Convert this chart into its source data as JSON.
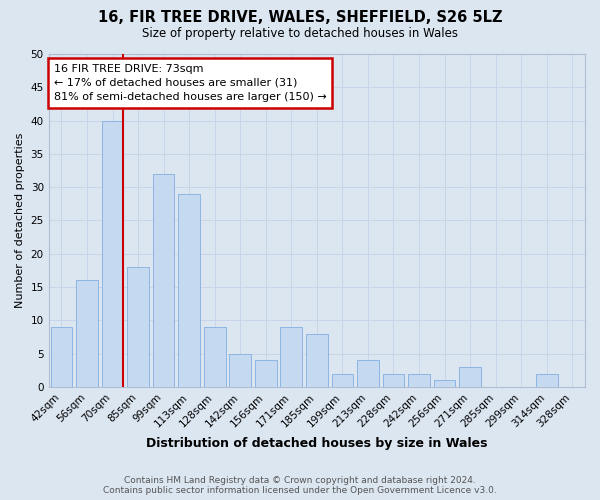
{
  "title": "16, FIR TREE DRIVE, WALES, SHEFFIELD, S26 5LZ",
  "subtitle": "Size of property relative to detached houses in Wales",
  "xlabel": "Distribution of detached houses by size in Wales",
  "ylabel": "Number of detached properties",
  "categories": [
    "42sqm",
    "56sqm",
    "70sqm",
    "85sqm",
    "99sqm",
    "113sqm",
    "128sqm",
    "142sqm",
    "156sqm",
    "171sqm",
    "185sqm",
    "199sqm",
    "213sqm",
    "228sqm",
    "242sqm",
    "256sqm",
    "271sqm",
    "285sqm",
    "299sqm",
    "314sqm",
    "328sqm"
  ],
  "values": [
    9,
    16,
    40,
    18,
    32,
    29,
    9,
    5,
    4,
    9,
    8,
    2,
    4,
    2,
    2,
    1,
    3,
    0,
    0,
    2,
    0
  ],
  "bar_color": "#c5d9f1",
  "bar_edge_color": "#8db4e2",
  "grid_color": "#c8d4e8",
  "background_color": "#dce6f1",
  "vline_x_index": 2,
  "vline_right_edge": true,
  "annotation_text_line1": "16 FIR TREE DRIVE: 73sqm",
  "annotation_text_line2": "← 17% of detached houses are smaller (31)",
  "annotation_text_line3": "81% of semi-detached houses are larger (150) →",
  "annotation_box_color": "#ffffff",
  "annotation_border_color": "#cc0000",
  "vline_color": "#cc0000",
  "ylim": [
    0,
    50
  ],
  "yticks": [
    0,
    5,
    10,
    15,
    20,
    25,
    30,
    35,
    40,
    45,
    50
  ],
  "footer_line1": "Contains HM Land Registry data © Crown copyright and database right 2024.",
  "footer_line2": "Contains public sector information licensed under the Open Government Licence v3.0.",
  "title_fontsize": 10.5,
  "subtitle_fontsize": 8.5,
  "ylabel_fontsize": 8,
  "xlabel_fontsize": 9,
  "tick_fontsize": 7.5,
  "footer_fontsize": 6.5
}
